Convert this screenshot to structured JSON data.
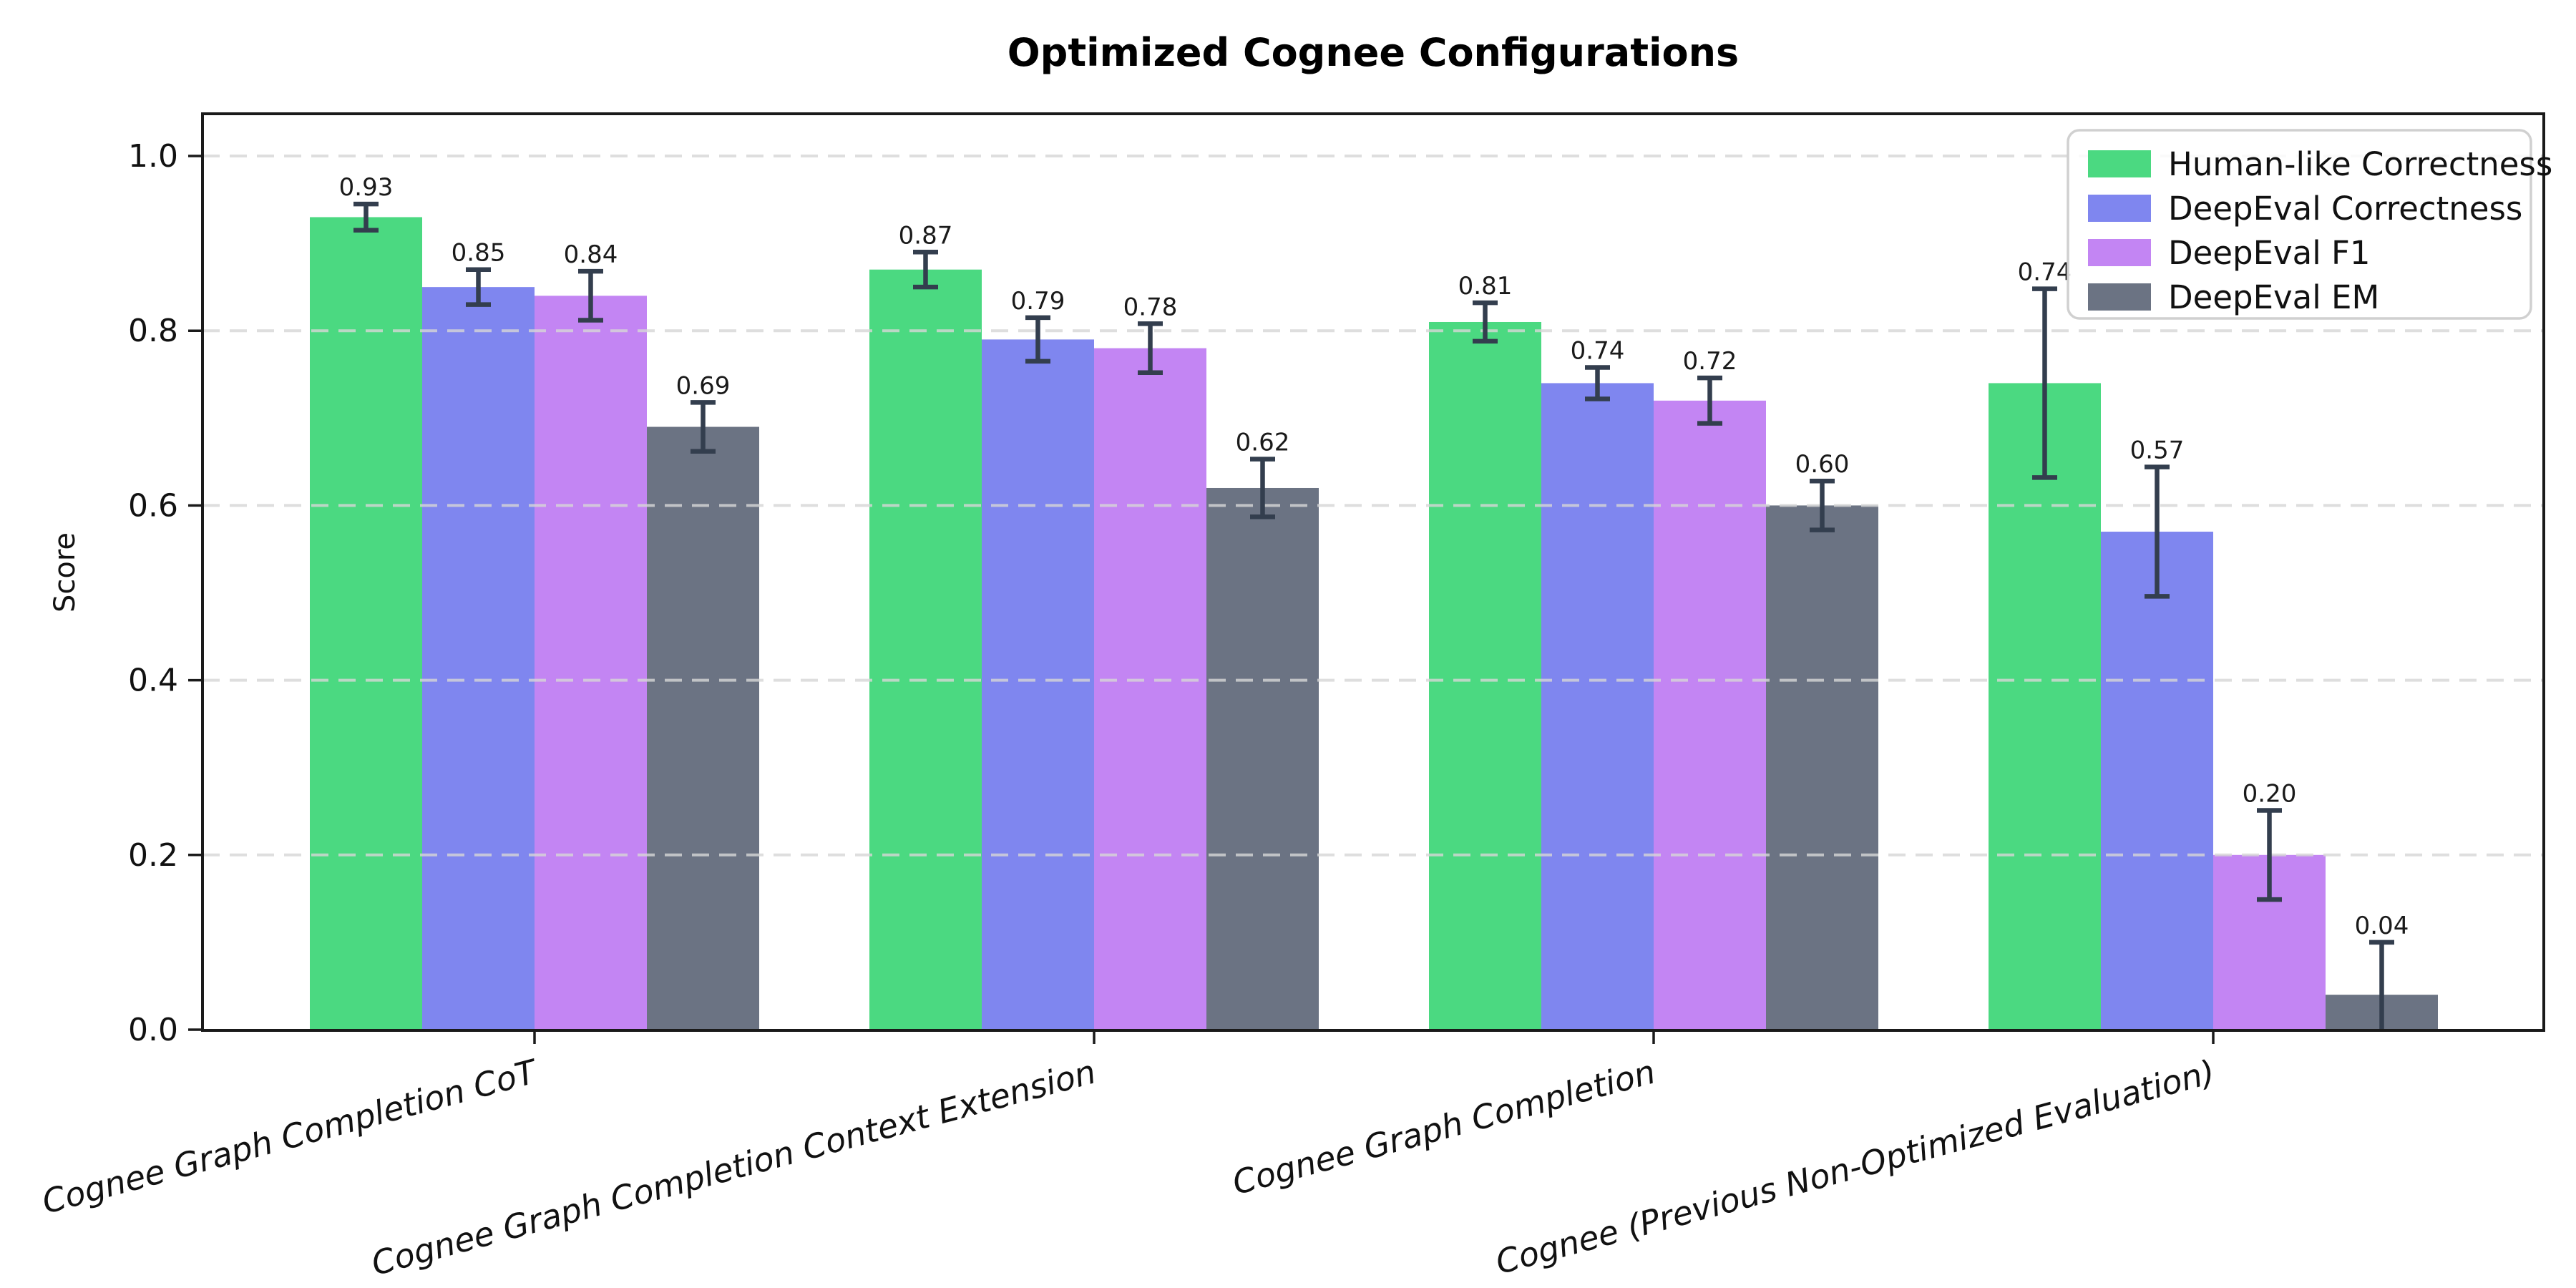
{
  "title": "Optimized Cognee Configurations",
  "chart_data": {
    "type": "bar",
    "title": "Optimized Cognee Configurations",
    "xlabel": "",
    "ylabel": "Score",
    "ylim": [
      0,
      1.05
    ],
    "yticks": [
      "0.0",
      "0.2",
      "0.4",
      "0.6",
      "0.8",
      "1.0"
    ],
    "grid": "horizontal, dashed, light gray, drawn over bars",
    "legend_position": "upper right",
    "x_tick_rotation_deg": 15,
    "categories": [
      "Cognee Graph Completion CoT",
      "Cognee Graph Completion Context Extension",
      "Cognee Graph Completion",
      "Cognee (Previous Non-Optimized Evaluation)"
    ],
    "series": [
      {
        "name": "Human-like Correctness",
        "color": "#4bd981",
        "values": [
          0.93,
          0.87,
          0.81,
          0.74
        ],
        "errors": [
          0.015,
          0.02,
          0.022,
          0.108
        ]
      },
      {
        "name": "DeepEval Correctness",
        "color": "#7f86ef",
        "values": [
          0.85,
          0.79,
          0.74,
          0.57
        ],
        "errors": [
          0.02,
          0.025,
          0.018,
          0.074
        ]
      },
      {
        "name": "DeepEval F1",
        "color": "#c385f3",
        "values": [
          0.84,
          0.78,
          0.72,
          0.2
        ],
        "errors": [
          0.028,
          0.028,
          0.026,
          0.051
        ]
      },
      {
        "name": "DeepEval EM",
        "color": "#6b7383",
        "values": [
          0.69,
          0.62,
          0.6,
          0.04
        ],
        "errors": [
          0.028,
          0.033,
          0.028,
          0.06
        ]
      }
    ],
    "error_bar_color": "#333e4e",
    "value_label_format": "2 decimals above error bar cap"
  },
  "style": {
    "background": "#ffffff",
    "grid_color": "#d7d7d7",
    "spine_color": "#1a1a1a",
    "legend_border_color": "#d0d0d0"
  }
}
